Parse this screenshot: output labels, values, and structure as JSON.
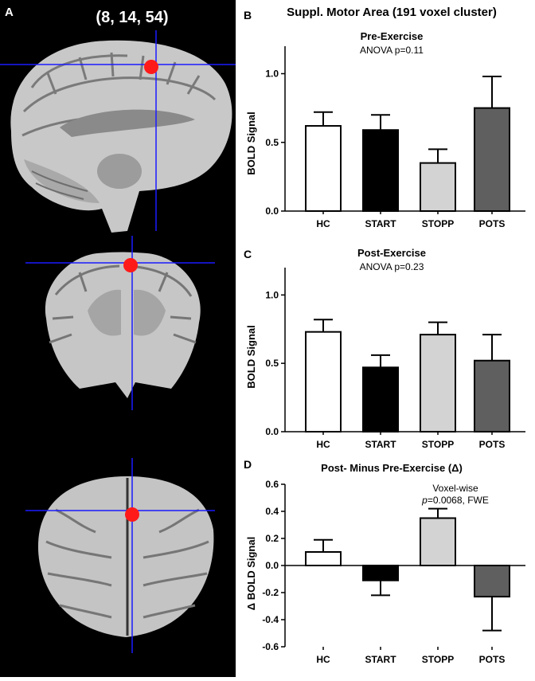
{
  "figure": {
    "panel_letters": [
      "A",
      "B",
      "C",
      "D"
    ],
    "coordinates": "(8, 14, 54)",
    "main_title": "Suppl. Motor Area (191 voxel cluster)"
  },
  "colors": {
    "HC": "#ffffff",
    "START": "#000000",
    "STOPP": "#d3d3d3",
    "POTS": "#5f5f5f",
    "crosshair": "#1a1aff",
    "cluster": "#ff1a1a",
    "brain_bg": "#000000"
  },
  "chart_data": [
    {
      "type": "bar",
      "title": "Pre-Exercise",
      "subtitle": "ANOVA p=0.11",
      "ylabel": "BOLD Signal",
      "categories": [
        "HC",
        "START",
        "STOPP",
        "POTS"
      ],
      "values": [
        0.62,
        0.59,
        0.35,
        0.75
      ],
      "errors": [
        0.1,
        0.11,
        0.1,
        0.23
      ],
      "ylim": [
        0,
        1.2
      ],
      "yticks": [
        "0.0",
        "0.5",
        "1.0"
      ],
      "ytick_values": [
        0,
        0.5,
        1.0
      ]
    },
    {
      "type": "bar",
      "title": "Post-Exercise",
      "subtitle": "ANOVA p=0.23",
      "ylabel": "BOLD Signal",
      "categories": [
        "HC",
        "START",
        "STOPP",
        "POTS"
      ],
      "values": [
        0.73,
        0.47,
        0.71,
        0.52
      ],
      "errors": [
        0.09,
        0.09,
        0.09,
        0.19
      ],
      "ylim": [
        0,
        1.2
      ],
      "yticks": [
        "0.0",
        "0.5",
        "1.0"
      ],
      "ytick_values": [
        0,
        0.5,
        1.0
      ]
    },
    {
      "type": "bar",
      "title": "Post- Minus Pre-Exercise (Δ)",
      "annotation_line1": "Voxel-wise",
      "annotation_line2_p": "p",
      "annotation_line2_rest": "=0.0068, FWE",
      "ylabel": "Δ BOLD Signal",
      "categories": [
        "HC",
        "START",
        "STOPP",
        "POTS"
      ],
      "values": [
        0.1,
        -0.11,
        0.35,
        -0.23
      ],
      "errors": [
        0.09,
        0.11,
        0.07,
        0.25
      ],
      "ylim": [
        -0.6,
        0.6
      ],
      "yticks": [
        "-0.6",
        "-0.4",
        "-0.2",
        "0.0",
        "0.2",
        "0.4",
        "0.6"
      ],
      "ytick_values": [
        -0.6,
        -0.4,
        -0.2,
        0,
        0.2,
        0.4,
        0.6
      ]
    }
  ]
}
